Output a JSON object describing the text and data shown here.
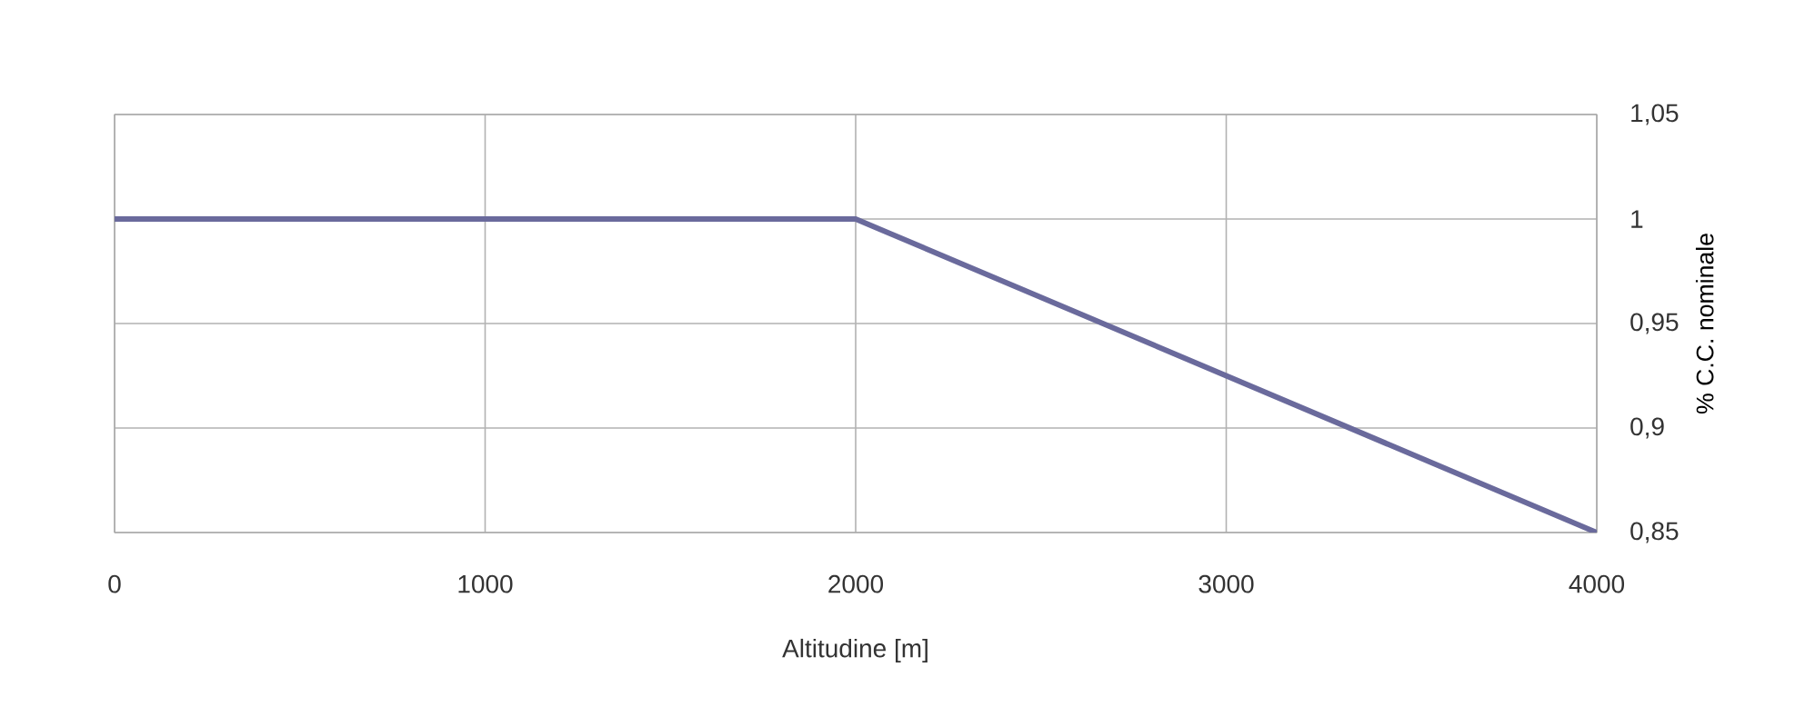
{
  "chart_data": {
    "type": "line",
    "xlabel": "Altitudine [m]",
    "ylabel": "% C.C. nominale",
    "x": [
      0,
      2000,
      4000
    ],
    "series": [
      {
        "color": "#6a6a9c",
        "values": [
          1,
          1,
          0.85
        ]
      }
    ],
    "xlim": [
      0,
      4000
    ],
    "ylim": [
      0.85,
      1.05
    ],
    "xticks": [
      0,
      1000,
      2000,
      3000,
      4000
    ],
    "yticks": [
      {
        "value": 0.85,
        "label": "0,85"
      },
      {
        "value": 0.9,
        "label": "0,9"
      },
      {
        "value": 0.95,
        "label": "0,95"
      },
      {
        "value": 1,
        "label": "1"
      },
      {
        "value": 1.05,
        "label": "1,05"
      }
    ],
    "grid": true,
    "line_style": "solid",
    "marker": "none"
  }
}
